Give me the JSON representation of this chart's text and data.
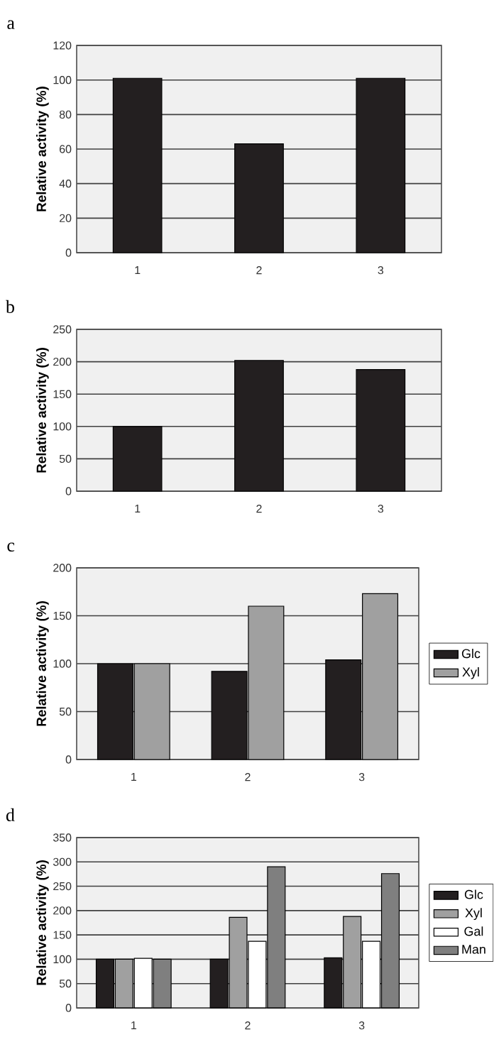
{
  "chart_data": [
    {
      "type": "bar",
      "title": "a",
      "ylabel": "Relative activity (%)",
      "categories": [
        "1",
        "2",
        "3"
      ],
      "values": [
        101,
        63,
        101
      ],
      "color": "#231f20",
      "ylim": [
        0,
        120
      ],
      "yticks": [
        0,
        20,
        40,
        60,
        80,
        100,
        120
      ],
      "grid": "y"
    },
    {
      "type": "bar",
      "title": "b",
      "ylabel": "Relative activity (%)",
      "categories": [
        "1",
        "2",
        "3"
      ],
      "values": [
        100,
        202,
        188
      ],
      "color": "#231f20",
      "ylim": [
        0,
        250
      ],
      "yticks": [
        0,
        50,
        100,
        150,
        200,
        250
      ],
      "grid": "y"
    },
    {
      "type": "bar",
      "title": "c",
      "ylabel": "Relative activity (%)",
      "categories": [
        "1",
        "2",
        "3"
      ],
      "series": [
        {
          "name": "Glc",
          "color": "#231f20",
          "values": [
            100,
            92,
            104
          ]
        },
        {
          "name": "Xyl",
          "color": "#a0a0a0",
          "values": [
            100,
            160,
            173
          ]
        }
      ],
      "ylim": [
        0,
        200
      ],
      "yticks": [
        0,
        50,
        100,
        150,
        200
      ],
      "grid": "y",
      "legend": "right"
    },
    {
      "type": "bar",
      "title": "d",
      "ylabel": "Relative activity (%)",
      "categories": [
        "1",
        "2",
        "3"
      ],
      "series": [
        {
          "name": "Glc",
          "color": "#231f20",
          "values": [
            100,
            100,
            103
          ]
        },
        {
          "name": "Xyl",
          "color": "#a0a0a0",
          "values": [
            100,
            186,
            188
          ]
        },
        {
          "name": "Gal",
          "color": "#ffffff",
          "values": [
            102,
            137,
            137
          ]
        },
        {
          "name": "Man",
          "color": "#7f7f7f",
          "values": [
            100,
            290,
            276
          ]
        }
      ],
      "ylim": [
        0,
        350
      ],
      "yticks": [
        0,
        50,
        100,
        150,
        200,
        250,
        300,
        350
      ],
      "grid": "y",
      "legend": "right"
    }
  ]
}
